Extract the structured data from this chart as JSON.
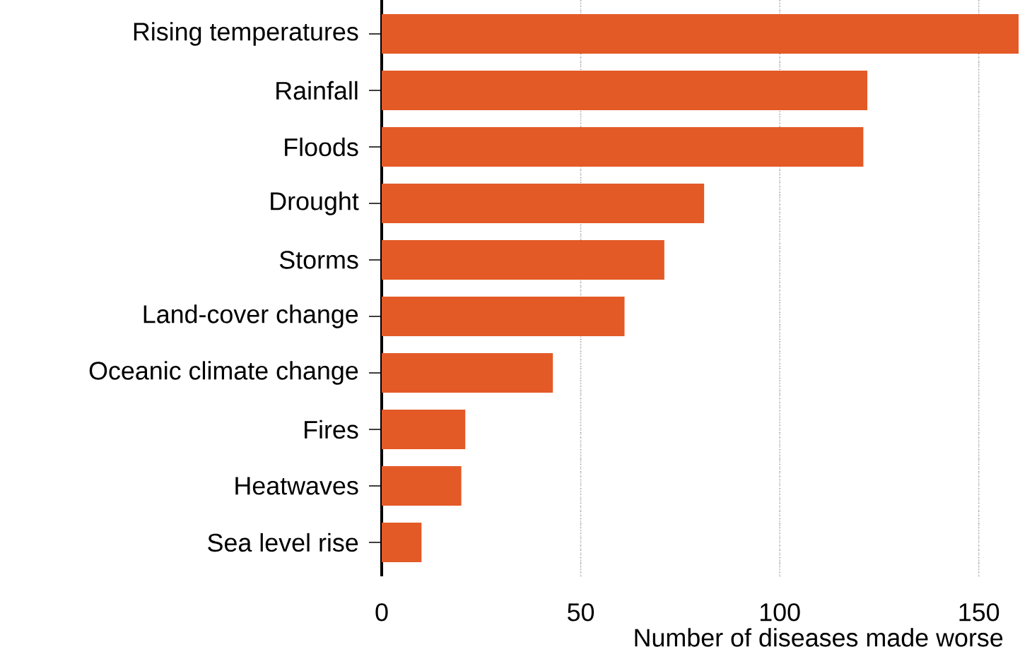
{
  "chart_data": {
    "type": "bar",
    "orientation": "horizontal",
    "xlabel": "Number of diseases made worse",
    "categories": [
      "Rising temperatures",
      "Rainfall",
      "Floods",
      "Drought",
      "Storms",
      "Land-cover change",
      "Oceanic climate change",
      "Fires",
      "Heatwaves",
      "Sea level rise"
    ],
    "values": [
      160,
      122,
      121,
      81,
      71,
      61,
      43,
      21,
      20,
      10
    ],
    "color": "#e35a27",
    "xlim": [
      0,
      160
    ],
    "xticks": [
      0,
      50,
      100,
      150
    ],
    "grid": "x"
  }
}
